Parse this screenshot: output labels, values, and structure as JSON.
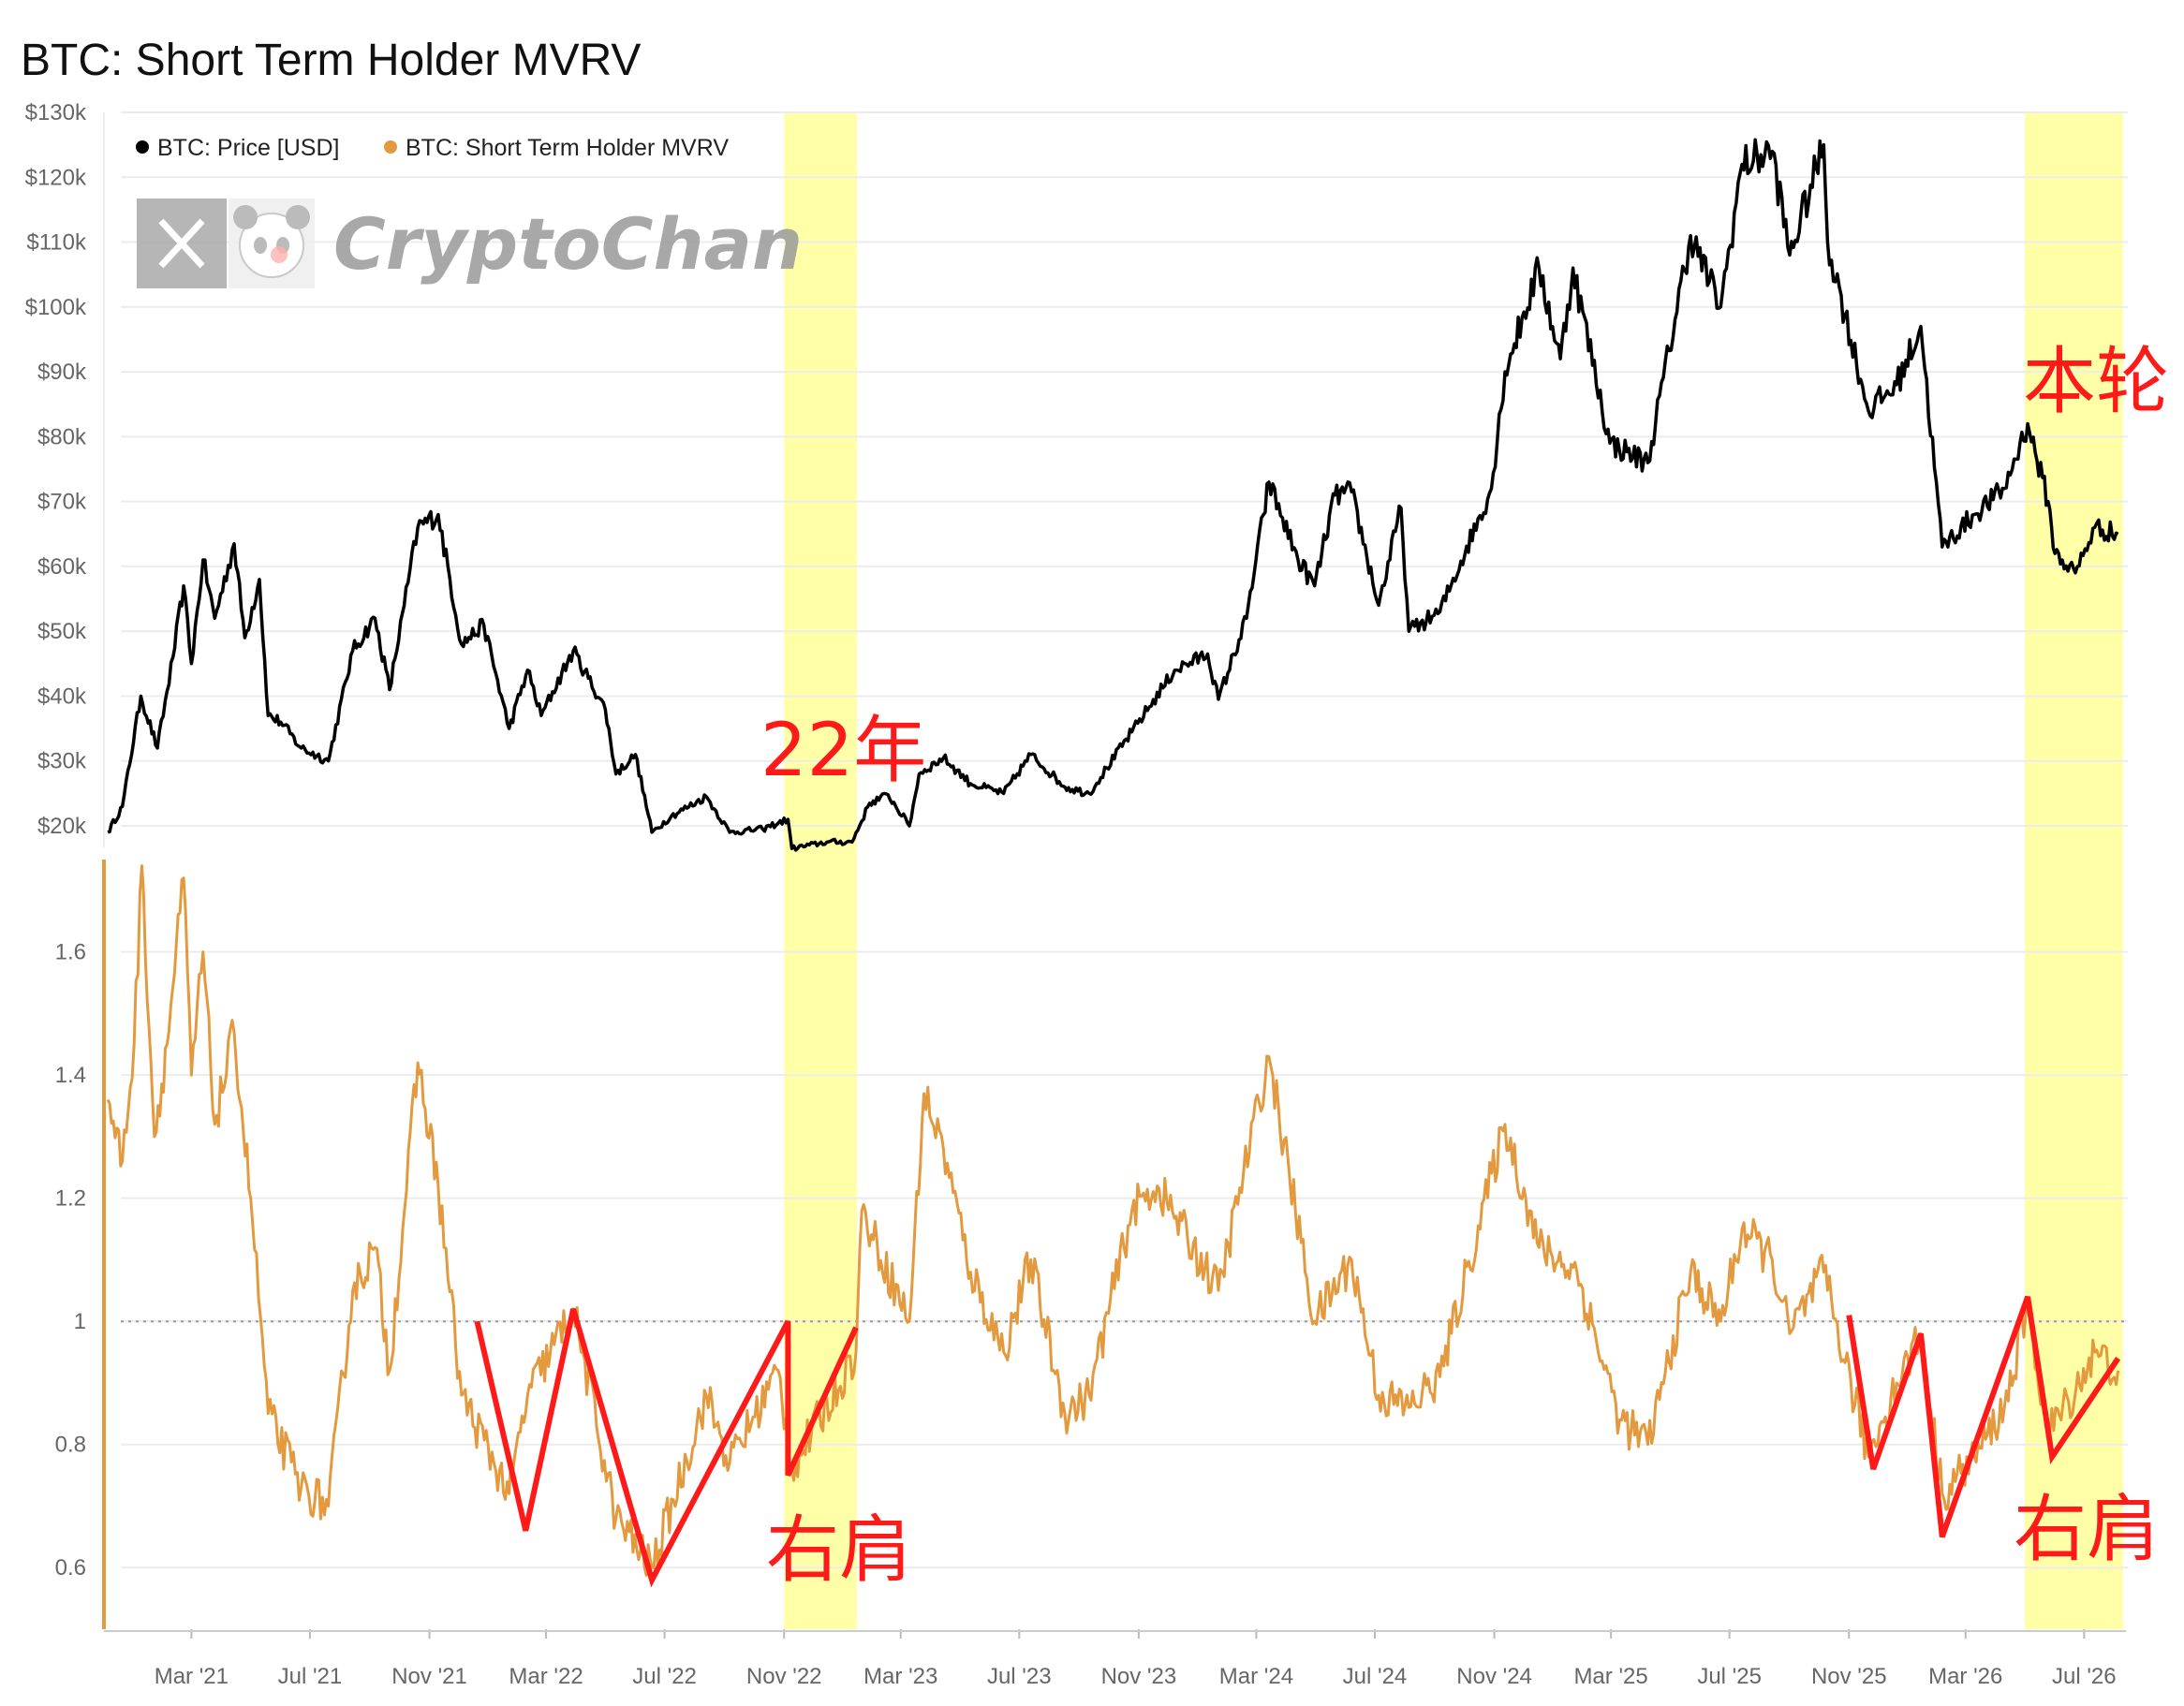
{
  "title": "BTC: Short Term Holder MVRV",
  "watermark": {
    "text": "CryptoChan",
    "x_icon": "x-logo-icon",
    "avatar_icon": "panda-avatar-icon"
  },
  "legend": [
    {
      "label": "BTC: Price [USD]",
      "color": "#000000"
    },
    {
      "label": "BTC: Short Term Holder MVRV",
      "color": "#e39a3f"
    }
  ],
  "colors": {
    "price": "#000000",
    "mvrv": "#e39a3f",
    "highlight": "#ffff99",
    "annotation": "#ff1a1a",
    "grid": "#ececec"
  },
  "annotations": {
    "y2022": "22年",
    "current": "本轮",
    "right_shoulder_2022": "右肩",
    "right_shoulder_current": "右肩"
  },
  "chart_data": {
    "type": "line",
    "x_axis": {
      "type": "date",
      "range": [
        "2020-12-01",
        "2026-08-15"
      ],
      "ticks": [
        {
          "date": "2021-03-01",
          "label": "Mar '21"
        },
        {
          "date": "2021-07-01",
          "label": "Jul '21"
        },
        {
          "date": "2021-11-01",
          "label": "Nov '21"
        },
        {
          "date": "2022-03-01",
          "label": "Mar '22"
        },
        {
          "date": "2022-07-01",
          "label": "Jul '22"
        },
        {
          "date": "2022-11-01",
          "label": "Nov '22"
        },
        {
          "date": "2023-03-01",
          "label": "Mar '23"
        },
        {
          "date": "2023-07-01",
          "label": "Jul '23"
        },
        {
          "date": "2023-11-01",
          "label": "Nov '23"
        },
        {
          "date": "2024-03-01",
          "label": "Mar '24"
        },
        {
          "date": "2024-07-01",
          "label": "Jul '24"
        },
        {
          "date": "2024-11-01",
          "label": "Nov '24"
        },
        {
          "date": "2025-03-01",
          "label": "Mar '25"
        },
        {
          "date": "2025-07-01",
          "label": "Jul '25"
        },
        {
          "date": "2025-11-01",
          "label": "Nov '25"
        },
        {
          "date": "2026-03-01",
          "label": "Mar '26"
        },
        {
          "date": "2026-07-01",
          "label": "Jul '26"
        }
      ]
    },
    "price_axis": {
      "range": [
        20000,
        130000
      ],
      "ticks": [
        {
          "value": 20000,
          "label": "$20k"
        },
        {
          "value": 30000,
          "label": "$30k"
        },
        {
          "value": 40000,
          "label": "$40k"
        },
        {
          "value": 50000,
          "label": "$50k"
        },
        {
          "value": 60000,
          "label": "$60k"
        },
        {
          "value": 70000,
          "label": "$70k"
        },
        {
          "value": 80000,
          "label": "$80k"
        },
        {
          "value": 90000,
          "label": "$90k"
        },
        {
          "value": 100000,
          "label": "$100k"
        },
        {
          "value": 110000,
          "label": "$110k"
        },
        {
          "value": 120000,
          "label": "$120k"
        },
        {
          "value": 130000,
          "label": "$130k"
        }
      ]
    },
    "mvrv_axis": {
      "range": [
        0.5,
        1.75
      ],
      "reference_line": 1.0,
      "ticks": [
        {
          "value": 0.6,
          "label": "0.6"
        },
        {
          "value": 0.8,
          "label": "0.8"
        },
        {
          "value": 1.0,
          "label": "1"
        },
        {
          "value": 1.2,
          "label": "1.2"
        },
        {
          "value": 1.4,
          "label": "1.4"
        },
        {
          "value": 1.6,
          "label": "1.6"
        }
      ]
    },
    "highlight_periods": [
      {
        "start": "2022-11-01",
        "end": "2023-01-15"
      },
      {
        "start": "2026-05-01",
        "end": "2026-08-10"
      }
    ],
    "series": [
      {
        "name": "BTC: Price [USD]",
        "points": [
          [
            "2020-12-05",
            19000
          ],
          [
            "2020-12-20",
            23000
          ],
          [
            "2021-01-08",
            40000
          ],
          [
            "2021-01-25",
            32000
          ],
          [
            "2021-02-10",
            46000
          ],
          [
            "2021-02-21",
            57000
          ],
          [
            "2021-03-01",
            45000
          ],
          [
            "2021-03-13",
            61000
          ],
          [
            "2021-03-25",
            52000
          ],
          [
            "2021-04-14",
            63500
          ],
          [
            "2021-04-25",
            49000
          ],
          [
            "2021-05-10",
            58000
          ],
          [
            "2021-05-19",
            37000
          ],
          [
            "2021-06-01",
            36000
          ],
          [
            "2021-06-22",
            32000
          ],
          [
            "2021-07-20",
            30000
          ],
          [
            "2021-08-14",
            47000
          ],
          [
            "2021-09-06",
            52000
          ],
          [
            "2021-09-21",
            41000
          ],
          [
            "2021-10-06",
            54000
          ],
          [
            "2021-10-20",
            66000
          ],
          [
            "2021-11-10",
            68000
          ],
          [
            "2021-12-04",
            48000
          ],
          [
            "2021-12-27",
            51000
          ],
          [
            "2022-01-22",
            35000
          ],
          [
            "2022-02-10",
            44000
          ],
          [
            "2022-02-24",
            37000
          ],
          [
            "2022-03-29",
            47000
          ],
          [
            "2022-05-01",
            38000
          ],
          [
            "2022-05-12",
            28000
          ],
          [
            "2022-06-01",
            31000
          ],
          [
            "2022-06-18",
            19000
          ],
          [
            "2022-07-08",
            21500
          ],
          [
            "2022-08-13",
            24500
          ],
          [
            "2022-09-06",
            19000
          ],
          [
            "2022-10-10",
            19500
          ],
          [
            "2022-11-05",
            21000
          ],
          [
            "2022-11-09",
            16500
          ],
          [
            "2022-12-15",
            17500
          ],
          [
            "2023-01-10",
            17500
          ],
          [
            "2023-01-28",
            23500
          ],
          [
            "2023-02-16",
            24800
          ],
          [
            "2023-03-10",
            20000
          ],
          [
            "2023-03-20",
            28000
          ],
          [
            "2023-04-14",
            30500
          ],
          [
            "2023-05-12",
            26500
          ],
          [
            "2023-06-15",
            25000
          ],
          [
            "2023-07-13",
            31000
          ],
          [
            "2023-08-17",
            26000
          ],
          [
            "2023-09-11",
            25000
          ],
          [
            "2023-10-25",
            34500
          ],
          [
            "2023-12-08",
            44000
          ],
          [
            "2024-01-11",
            46500
          ],
          [
            "2024-01-22",
            39500
          ],
          [
            "2024-02-20",
            52000
          ],
          [
            "2024-03-14",
            73000
          ],
          [
            "2024-04-13",
            61000
          ],
          [
            "2024-04-30",
            57000
          ],
          [
            "2024-05-21",
            71000
          ],
          [
            "2024-06-07",
            71500
          ],
          [
            "2024-07-05",
            54000
          ],
          [
            "2024-07-28",
            69000
          ],
          [
            "2024-08-05",
            50000
          ],
          [
            "2024-09-06",
            53000
          ],
          [
            "2024-10-29",
            72000
          ],
          [
            "2024-11-12",
            90000
          ],
          [
            "2024-12-17",
            106000
          ],
          [
            "2025-01-08",
            92000
          ],
          [
            "2025-01-21",
            106000
          ],
          [
            "2025-02-28",
            79000
          ],
          [
            "2025-04-08",
            76000
          ],
          [
            "2025-05-22",
            111000
          ],
          [
            "2025-06-22",
            100000
          ],
          [
            "2025-07-14",
            122000
          ],
          [
            "2025-08-14",
            124000
          ],
          [
            "2025-09-01",
            108000
          ],
          [
            "2025-10-06",
            125000
          ],
          [
            "2025-10-10",
            110000
          ],
          [
            "2025-11-21",
            84000
          ],
          [
            "2025-12-20",
            88000
          ],
          [
            "2026-01-14",
            97000
          ],
          [
            "2026-02-05",
            63000
          ],
          [
            "2026-03-10",
            68000
          ],
          [
            "2026-04-10",
            72000
          ],
          [
            "2026-05-04",
            82000
          ],
          [
            "2026-05-25",
            70000
          ],
          [
            "2026-06-01",
            62000
          ],
          [
            "2026-06-22",
            59000
          ],
          [
            "2026-07-12",
            66000
          ],
          [
            "2026-08-05",
            65000
          ]
        ]
      },
      {
        "name": "BTC: Short Term Holder MVRV",
        "points": [
          [
            "2020-12-05",
            1.36
          ],
          [
            "2020-12-20",
            1.26
          ],
          [
            "2021-01-01",
            1.45
          ],
          [
            "2021-01-09",
            1.74
          ],
          [
            "2021-01-22",
            1.3
          ],
          [
            "2021-02-04",
            1.45
          ],
          [
            "2021-02-21",
            1.72
          ],
          [
            "2021-03-01",
            1.4
          ],
          [
            "2021-03-13",
            1.6
          ],
          [
            "2021-03-25",
            1.32
          ],
          [
            "2021-04-14",
            1.47
          ],
          [
            "2021-05-01",
            1.2
          ],
          [
            "2021-05-19",
            0.85
          ],
          [
            "2021-06-22",
            0.73
          ],
          [
            "2021-07-20",
            0.7
          ],
          [
            "2021-08-14",
            1.05
          ],
          [
            "2021-09-06",
            1.12
          ],
          [
            "2021-09-21",
            0.92
          ],
          [
            "2021-10-20",
            1.42
          ],
          [
            "2021-11-10",
            1.22
          ],
          [
            "2021-12-04",
            0.88
          ],
          [
            "2022-01-22",
            0.72
          ],
          [
            "2022-02-10",
            0.88
          ],
          [
            "2022-03-29",
            1.02
          ],
          [
            "2022-05-12",
            0.68
          ],
          [
            "2022-06-18",
            0.6
          ],
          [
            "2022-08-13",
            0.88
          ],
          [
            "2022-09-06",
            0.77
          ],
          [
            "2022-10-26",
            0.92
          ],
          [
            "2022-11-09",
            0.76
          ],
          [
            "2023-01-14",
            0.95
          ],
          [
            "2023-01-20",
            1.18
          ],
          [
            "2023-03-10",
            1.0
          ],
          [
            "2023-03-25",
            1.37
          ],
          [
            "2023-04-14",
            1.28
          ],
          [
            "2023-05-12",
            1.08
          ],
          [
            "2023-06-15",
            0.95
          ],
          [
            "2023-07-13",
            1.1
          ],
          [
            "2023-08-17",
            0.85
          ],
          [
            "2023-09-11",
            0.88
          ],
          [
            "2023-10-25",
            1.18
          ],
          [
            "2023-11-20",
            1.22
          ],
          [
            "2024-01-22",
            1.05
          ],
          [
            "2024-03-14",
            1.43
          ],
          [
            "2024-04-30",
            1.0
          ],
          [
            "2024-06-07",
            1.1
          ],
          [
            "2024-07-05",
            0.88
          ],
          [
            "2024-08-05",
            0.86
          ],
          [
            "2024-09-06",
            0.91
          ],
          [
            "2024-11-12",
            1.32
          ],
          [
            "2024-12-17",
            1.12
          ],
          [
            "2025-01-25",
            1.08
          ],
          [
            "2025-03-10",
            0.84
          ],
          [
            "2025-04-08",
            0.8
          ],
          [
            "2025-05-22",
            1.08
          ],
          [
            "2025-06-22",
            1.0
          ],
          [
            "2025-07-14",
            1.15
          ],
          [
            "2025-08-14",
            1.1
          ],
          [
            "2025-09-01",
            0.98
          ],
          [
            "2025-10-06",
            1.08
          ],
          [
            "2025-11-21",
            0.78
          ],
          [
            "2025-12-20",
            0.9
          ],
          [
            "2026-01-14",
            0.98
          ],
          [
            "2026-02-05",
            0.72
          ],
          [
            "2026-03-10",
            0.78
          ],
          [
            "2026-04-10",
            0.86
          ],
          [
            "2026-05-04",
            1.02
          ],
          [
            "2026-05-25",
            0.82
          ],
          [
            "2026-06-15",
            0.87
          ],
          [
            "2026-07-12",
            0.95
          ],
          [
            "2026-08-05",
            0.92
          ]
        ]
      },
      {
        "name": "",
        "points": [
          [
            "2021-12-20",
            1.0
          ],
          [
            "2022-02-08",
            0.66
          ],
          [
            "2022-03-29",
            1.02
          ],
          [
            "2022-06-18",
            0.58
          ],
          [
            "2022-11-05",
            1.0
          ],
          [
            "2022-11-05",
            0.75
          ],
          [
            "2023-01-14",
            0.99
          ]
        ]
      },
      {
        "name": "",
        "points": [
          [
            "2025-11-01",
            1.01
          ],
          [
            "2025-11-26",
            0.76
          ],
          [
            "2026-01-14",
            0.98
          ],
          [
            "2026-02-05",
            0.65
          ],
          [
            "2026-05-04",
            1.04
          ],
          [
            "2026-05-29",
            0.78
          ],
          [
            "2026-08-05",
            0.94
          ]
        ]
      }
    ]
  }
}
